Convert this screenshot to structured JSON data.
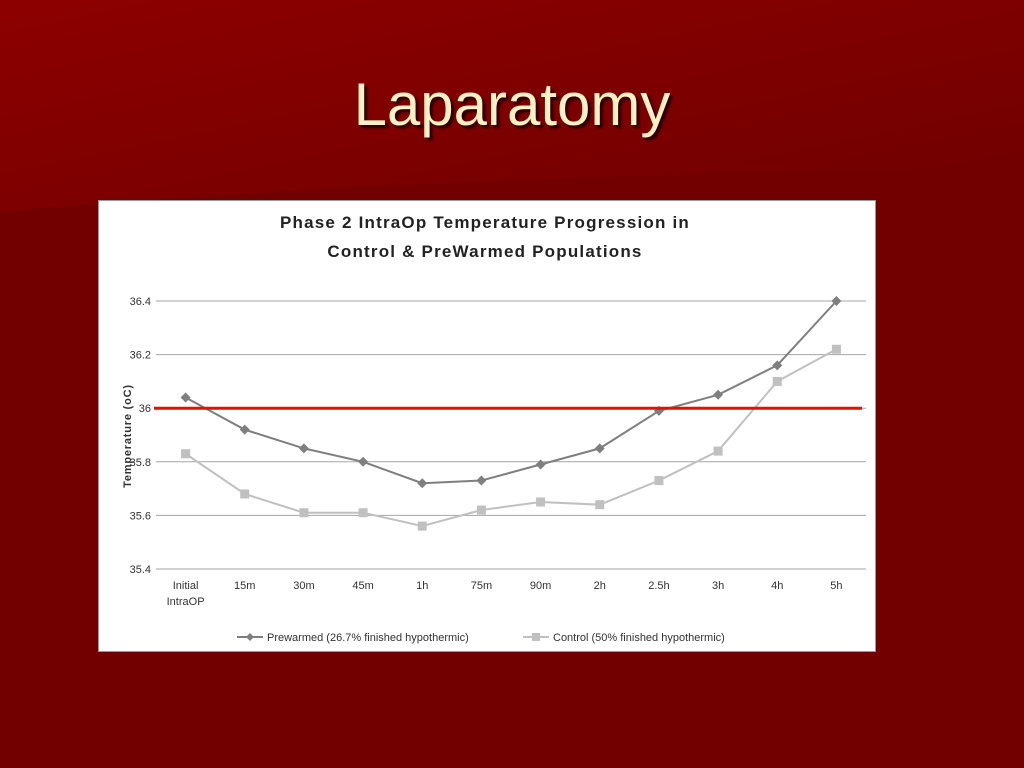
{
  "slide": {
    "title": "Laparatomy",
    "background_color": "#740000",
    "accent_color": "#8f0000",
    "title_color": "#fbf1c4"
  },
  "chart_data": {
    "type": "line",
    "title_lines": [
      "Phase 2 IntraOp Temperature Progression in",
      "Control & PreWarmed Populations"
    ],
    "xlabel": "",
    "ylabel": "Temperature (oC)",
    "categories": [
      [
        "Initial",
        "IntraOP"
      ],
      [
        "15m"
      ],
      [
        "30m"
      ],
      [
        "45m"
      ],
      [
        "1h"
      ],
      [
        "75m"
      ],
      [
        "90m"
      ],
      [
        "2h"
      ],
      [
        "2.5h"
      ],
      [
        "3h"
      ],
      [
        "4h"
      ],
      [
        "5h"
      ]
    ],
    "ylim": [
      35.4,
      36.4
    ],
    "yticks": [
      35.4,
      35.6,
      35.8,
      36,
      36.2,
      36.4
    ],
    "ytick_labels": [
      "35.4",
      "35.6",
      "35.8",
      "36",
      "36.2",
      "36.4"
    ],
    "grid": true,
    "legend_position": "bottom",
    "reference_line": {
      "value": 36,
      "color": "#dd1111"
    },
    "series": [
      {
        "name": "Prewarmed (26.7% finished hypothermic)",
        "color": "#7f7f7f",
        "marker": "diamond",
        "values": [
          36.04,
          35.92,
          35.85,
          35.8,
          35.72,
          35.73,
          35.79,
          35.85,
          35.99,
          36.05,
          36.16,
          36.4
        ]
      },
      {
        "name": "Control (50% finished hypothermic)",
        "color": "#c0c0c0",
        "marker": "square",
        "values": [
          35.83,
          35.68,
          35.61,
          35.61,
          35.56,
          35.62,
          35.65,
          35.64,
          35.73,
          35.84,
          36.1,
          36.22
        ]
      }
    ]
  }
}
